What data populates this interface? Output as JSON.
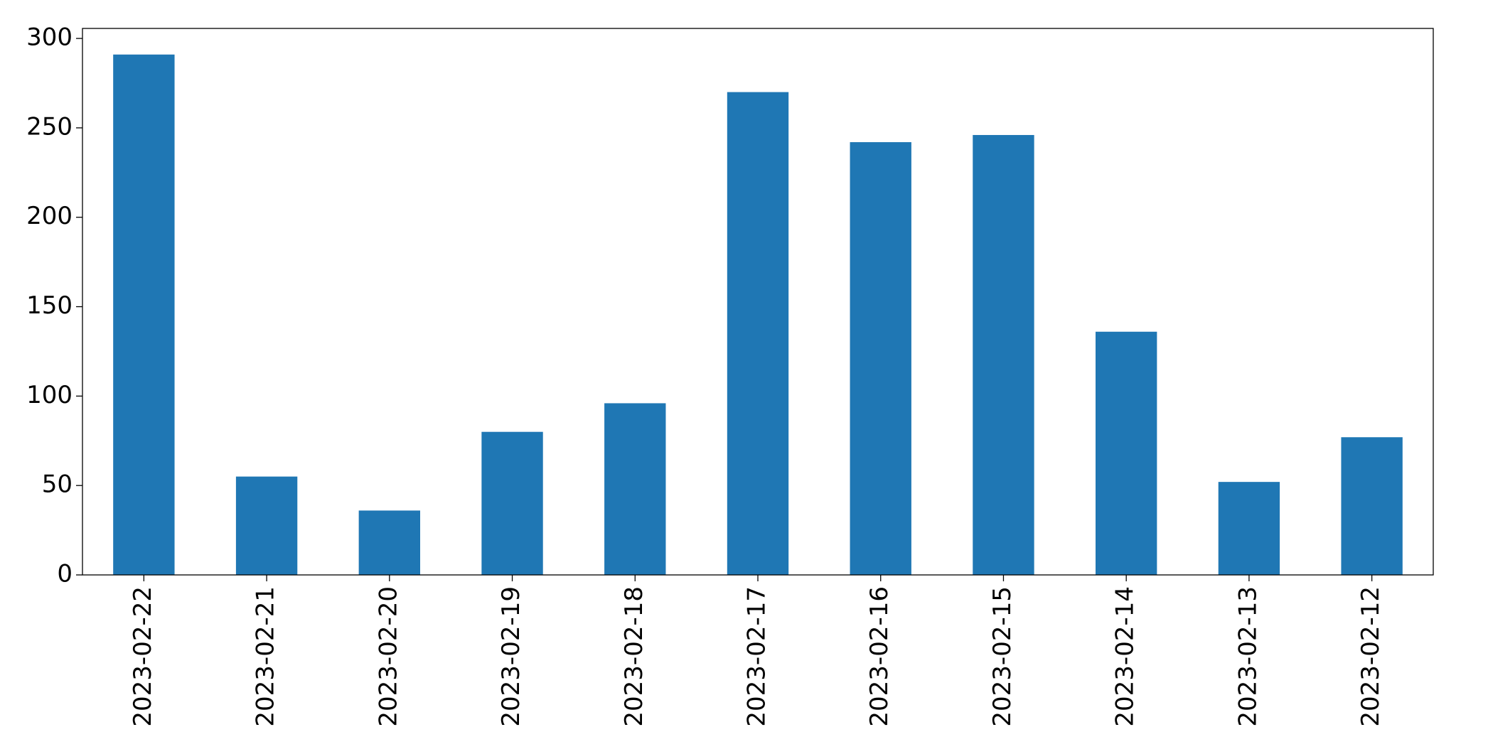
{
  "chart_data": {
    "type": "bar",
    "categories": [
      "2023-02-22",
      "2023-02-21",
      "2023-02-20",
      "2023-02-19",
      "2023-02-18",
      "2023-02-17",
      "2023-02-16",
      "2023-02-15",
      "2023-02-14",
      "2023-02-13",
      "2023-02-12"
    ],
    "values": [
      291,
      55,
      36,
      80,
      96,
      270,
      242,
      246,
      136,
      52,
      77
    ],
    "color": "#1f77b4",
    "ylim": [
      0,
      305.6
    ],
    "yticks": [
      0,
      50,
      100,
      150,
      200,
      250,
      300
    ],
    "grid": false
  }
}
